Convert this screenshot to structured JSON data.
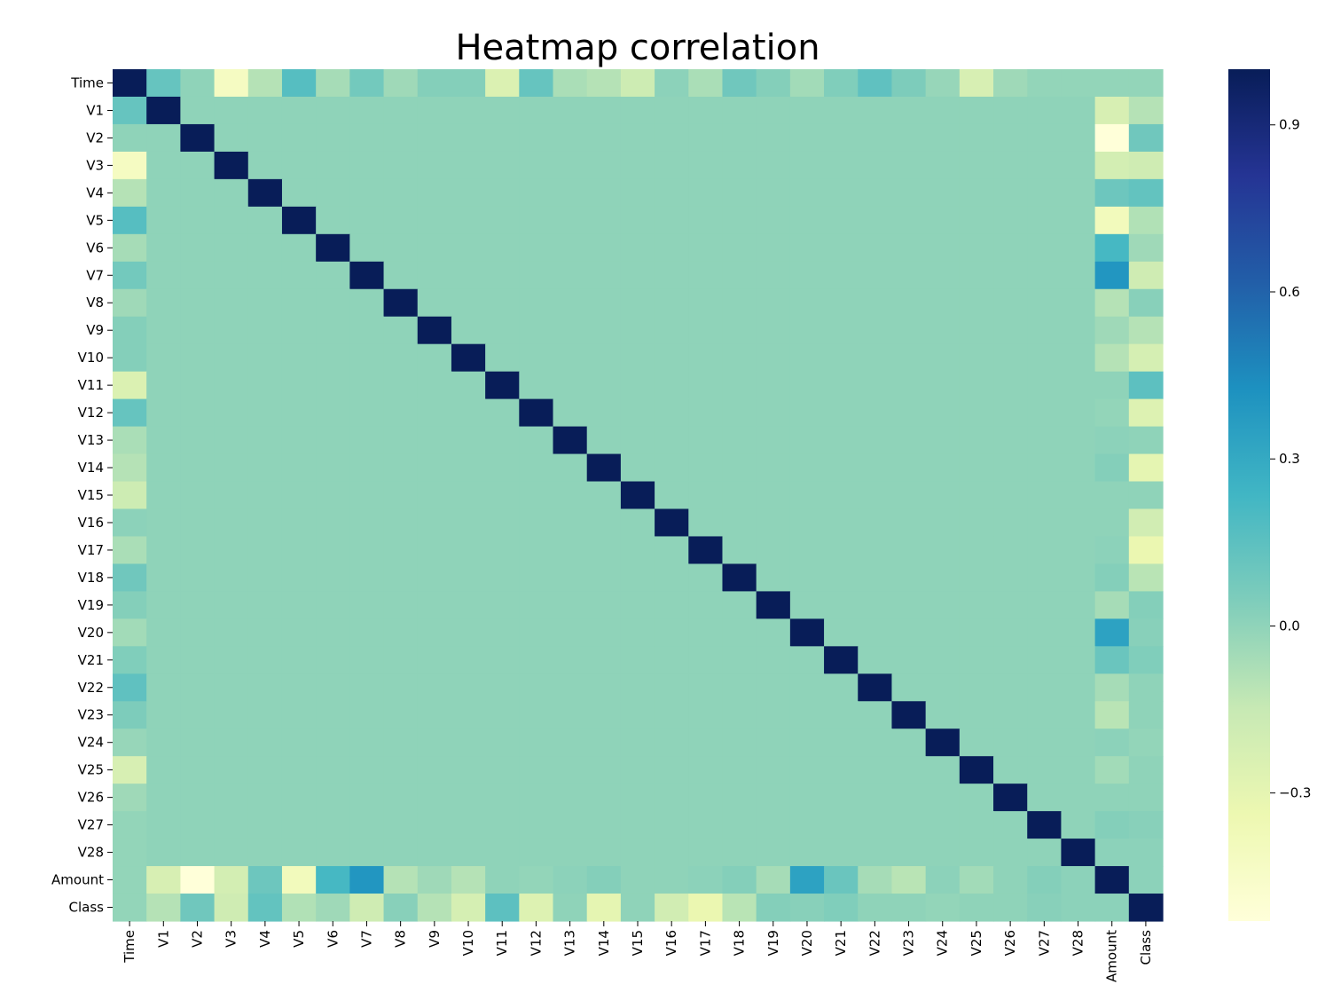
{
  "chart_data": {
    "type": "heatmap",
    "title": "Heatmap correlation",
    "xlabel": "",
    "ylabel": "",
    "labels": [
      "Time",
      "V1",
      "V2",
      "V3",
      "V4",
      "V5",
      "V6",
      "V7",
      "V8",
      "V9",
      "V10",
      "V11",
      "V12",
      "V13",
      "V14",
      "V15",
      "V16",
      "V17",
      "V18",
      "V19",
      "V20",
      "V21",
      "V22",
      "V23",
      "V24",
      "V25",
      "V26",
      "V27",
      "V28",
      "Amount",
      "Class"
    ],
    "time_corr": [
      1.0,
      0.12,
      0.0,
      -0.42,
      -0.1,
      0.17,
      -0.06,
      0.08,
      -0.04,
      0.03,
      0.03,
      -0.25,
      0.12,
      -0.07,
      -0.1,
      -0.18,
      0.01,
      -0.07,
      0.09,
      0.03,
      -0.05,
      0.04,
      0.14,
      0.05,
      -0.02,
      -0.23,
      -0.04,
      -0.01,
      -0.01,
      -0.01,
      -0.01
    ],
    "amount_corr": [
      -0.01,
      -0.23,
      -0.53,
      -0.21,
      0.1,
      -0.39,
      0.22,
      0.4,
      -0.1,
      -0.04,
      -0.1,
      0.0,
      -0.01,
      0.01,
      0.03,
      -0.0,
      0.0,
      0.01,
      0.03,
      -0.06,
      0.34,
      0.11,
      -0.06,
      -0.11,
      0.01,
      -0.05,
      -0.0,
      0.03,
      0.01,
      1.0,
      0.01
    ],
    "class_corr": [
      -0.01,
      -0.1,
      0.09,
      -0.19,
      0.13,
      -0.09,
      -0.04,
      -0.19,
      0.02,
      -0.1,
      -0.22,
      0.15,
      -0.26,
      -0.0,
      -0.3,
      -0.0,
      -0.2,
      -0.33,
      -0.11,
      0.03,
      0.02,
      0.04,
      0.0,
      -0.0,
      -0.01,
      0.0,
      0.0,
      0.02,
      0.01,
      0.01,
      1.0
    ],
    "default_corr": 0.0,
    "vmin": -0.53,
    "vmax": 1.0,
    "colormap": "YlGnBu",
    "colorbar_ticks": [
      0.9,
      0.6,
      0.3,
      0.0,
      -0.3
    ],
    "colorbar_tick_labels": [
      "0.9",
      "0.6",
      "0.3",
      "0.0",
      "−0.3"
    ]
  }
}
